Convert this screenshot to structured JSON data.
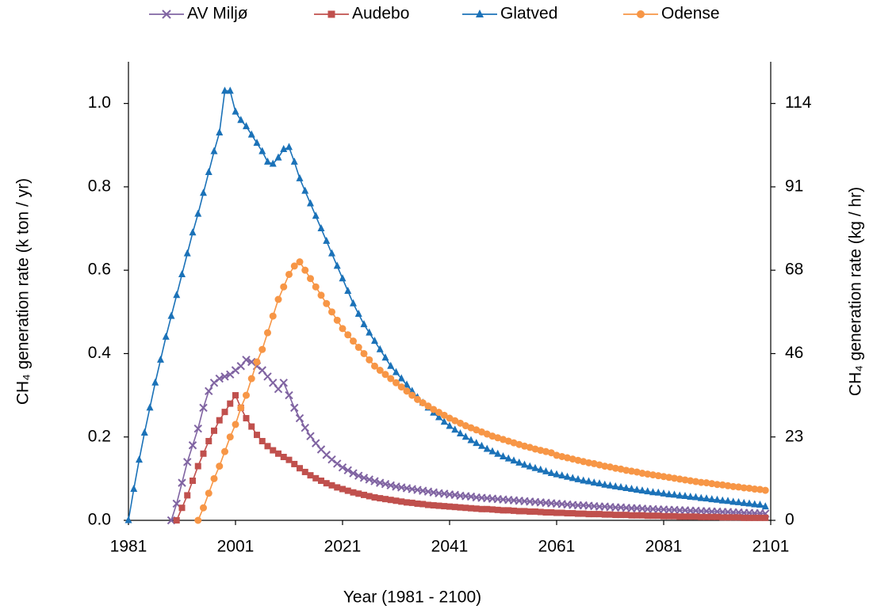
{
  "chart_data": {
    "type": "line",
    "x_label": "Year (1981 - 2100)",
    "y_label": "CH₄ generation rate (k ton / yr)",
    "y2_label": "CH₄ generation rate (kg / hr)",
    "xlim": [
      1981,
      2101
    ],
    "xticks": [
      1981,
      2001,
      2021,
      2041,
      2061,
      2081,
      2101
    ],
    "ylim": [
      0,
      1.1
    ],
    "yticks": [
      {
        "value": 0,
        "label": "0.0"
      },
      0.2,
      0.4,
      0.6,
      0.8,
      {
        "value": 1,
        "label": "1.0"
      }
    ],
    "y2lim": [
      0,
      125.49
    ],
    "y2ticks": [
      0,
      {
        "value": 22.82,
        "label": "23"
      },
      {
        "value": 45.63,
        "label": "46"
      },
      {
        "value": 68.45,
        "label": "68"
      },
      {
        "value": 91.26,
        "label": "91"
      },
      {
        "value": 114.08,
        "label": "114"
      }
    ],
    "legend": "top",
    "grid": false,
    "x": [
      1981,
      1982,
      1983,
      1984,
      1985,
      1986,
      1987,
      1988,
      1989,
      1990,
      1991,
      1992,
      1993,
      1994,
      1995,
      1996,
      1997,
      1998,
      1999,
      2000,
      2001,
      2002,
      2003,
      2004,
      2005,
      2006,
      2007,
      2008,
      2009,
      2010,
      2011,
      2012,
      2013,
      2014,
      2015,
      2016,
      2017,
      2018,
      2019,
      2020,
      2021,
      2022,
      2023,
      2024,
      2025,
      2026,
      2027,
      2028,
      2029,
      2030,
      2031,
      2032,
      2033,
      2034,
      2035,
      2036,
      2037,
      2038,
      2039,
      2040,
      2041,
      2042,
      2043,
      2044,
      2045,
      2046,
      2047,
      2048,
      2049,
      2050,
      2051,
      2052,
      2053,
      2054,
      2055,
      2056,
      2057,
      2058,
      2059,
      2060,
      2061,
      2062,
      2063,
      2064,
      2065,
      2066,
      2067,
      2068,
      2069,
      2070,
      2071,
      2072,
      2073,
      2074,
      2075,
      2076,
      2077,
      2078,
      2079,
      2080,
      2081,
      2082,
      2083,
      2084,
      2085,
      2086,
      2087,
      2088,
      2089,
      2090,
      2091,
      2092,
      2093,
      2094,
      2095,
      2096,
      2097,
      2098,
      2099,
      2100
    ],
    "series": [
      {
        "name": "AV Miljø",
        "color": "#8064a2",
        "marker": "x",
        "values": [
          null,
          null,
          null,
          null,
          null,
          null,
          null,
          null,
          0,
          0.04,
          0.09,
          0.14,
          0.18,
          0.22,
          0.27,
          0.31,
          0.33,
          0.34,
          0.345,
          0.35,
          0.36,
          0.37,
          0.385,
          0.38,
          0.37,
          0.36,
          0.345,
          0.33,
          0.315,
          0.33,
          0.3,
          0.27,
          0.245,
          0.222,
          0.202,
          0.185,
          0.17,
          0.157,
          0.146,
          0.136,
          0.127,
          0.12,
          0.113,
          0.107,
          0.102,
          0.098,
          0.094,
          0.09,
          0.087,
          0.084,
          0.081,
          0.079,
          0.077,
          0.075,
          0.073,
          0.071,
          0.069,
          0.067,
          0.065,
          0.064,
          0.062,
          0.061,
          0.059,
          0.058,
          0.057,
          0.055,
          0.054,
          0.053,
          0.052,
          0.051,
          0.05,
          0.049,
          0.048,
          0.047,
          0.046,
          0.045,
          0.044,
          0.043,
          0.042,
          0.041,
          0.04,
          0.039,
          0.038,
          0.037,
          0.036,
          0.036,
          0.035,
          0.034,
          0.033,
          0.033,
          0.032,
          0.031,
          0.031,
          0.03,
          0.029,
          0.029,
          0.028,
          0.027,
          0.027,
          0.026,
          0.026,
          0.025,
          0.025,
          0.024,
          0.024,
          0.023,
          0.023,
          0.022,
          0.022,
          0.021,
          0.021,
          0.02,
          0.02,
          0.019,
          0.019,
          0.018,
          0.018,
          0.017,
          0.017,
          0.016
        ]
      },
      {
        "name": "Audebo",
        "color": "#c0504d",
        "marker": "square",
        "values": [
          null,
          null,
          null,
          null,
          null,
          null,
          null,
          null,
          null,
          0,
          0.03,
          0.06,
          0.095,
          0.13,
          0.16,
          0.19,
          0.215,
          0.24,
          0.26,
          0.28,
          0.3,
          0.27,
          0.245,
          0.225,
          0.205,
          0.19,
          0.178,
          0.168,
          0.16,
          0.152,
          0.145,
          0.135,
          0.125,
          0.116,
          0.108,
          0.101,
          0.095,
          0.089,
          0.084,
          0.079,
          0.075,
          0.071,
          0.067,
          0.064,
          0.061,
          0.058,
          0.055,
          0.053,
          0.051,
          0.049,
          0.047,
          0.045,
          0.043,
          0.042,
          0.04,
          0.039,
          0.037,
          0.036,
          0.035,
          0.034,
          0.033,
          0.032,
          0.031,
          0.03,
          0.029,
          0.028,
          0.027,
          0.027,
          0.026,
          0.025,
          0.024,
          0.024,
          0.023,
          0.022,
          0.022,
          0.021,
          0.021,
          0.02,
          0.019,
          0.019,
          0.018,
          0.018,
          0.017,
          0.017,
          0.016,
          0.016,
          0.015,
          0.015,
          0.015,
          0.014,
          0.014,
          0.013,
          0.013,
          0.013,
          0.012,
          0.012,
          0.012,
          0.011,
          0.011,
          0.011,
          0.01,
          0.01,
          0.01,
          0.009,
          0.009,
          0.009,
          0.009,
          0.008,
          0.008,
          0.008,
          0.008,
          0.007,
          0.007,
          0.007,
          0.007,
          0.006,
          0.006,
          0.006,
          0.006,
          0.006
        ]
      },
      {
        "name": "Glatved",
        "color": "#1b72b8",
        "marker": "triangle",
        "values": [
          0,
          0.075,
          0.145,
          0.21,
          0.27,
          0.33,
          0.385,
          0.44,
          0.49,
          0.54,
          0.59,
          0.64,
          0.69,
          0.735,
          0.785,
          0.835,
          0.885,
          0.93,
          1.03,
          1.03,
          0.98,
          0.96,
          0.945,
          0.925,
          0.905,
          0.885,
          0.86,
          0.855,
          0.87,
          0.89,
          0.895,
          0.86,
          0.82,
          0.79,
          0.76,
          0.73,
          0.7,
          0.67,
          0.64,
          0.61,
          0.58,
          0.55,
          0.52,
          0.495,
          0.47,
          0.45,
          0.43,
          0.41,
          0.39,
          0.37,
          0.355,
          0.34,
          0.325,
          0.31,
          0.295,
          0.282,
          0.27,
          0.258,
          0.247,
          0.236,
          0.226,
          0.217,
          0.208,
          0.2,
          0.192,
          0.185,
          0.178,
          0.171,
          0.165,
          0.159,
          0.153,
          0.148,
          0.143,
          0.138,
          0.133,
          0.129,
          0.125,
          0.121,
          0.117,
          0.113,
          0.11,
          0.107,
          0.104,
          0.101,
          0.098,
          0.095,
          0.093,
          0.09,
          0.088,
          0.085,
          0.083,
          0.081,
          0.079,
          0.077,
          0.075,
          0.073,
          0.071,
          0.069,
          0.067,
          0.066,
          0.064,
          0.062,
          0.061,
          0.059,
          0.058,
          0.056,
          0.055,
          0.053,
          0.052,
          0.05,
          0.049,
          0.047,
          0.046,
          0.044,
          0.043,
          0.041,
          0.04,
          0.038,
          0.037,
          0.033
        ]
      },
      {
        "name": "Odense",
        "color": "#f79646",
        "marker": "circle",
        "values": [
          null,
          null,
          null,
          null,
          null,
          null,
          null,
          null,
          null,
          null,
          null,
          null,
          null,
          0,
          0.03,
          0.065,
          0.1,
          0.13,
          0.165,
          0.2,
          0.23,
          0.27,
          0.3,
          0.34,
          0.38,
          0.41,
          0.45,
          0.49,
          0.53,
          0.56,
          0.59,
          0.61,
          0.62,
          0.6,
          0.58,
          0.56,
          0.54,
          0.52,
          0.5,
          0.48,
          0.46,
          0.445,
          0.43,
          0.415,
          0.4,
          0.385,
          0.37,
          0.36,
          0.35,
          0.34,
          0.33,
          0.32,
          0.31,
          0.3,
          0.29,
          0.282,
          0.274,
          0.266,
          0.259,
          0.252,
          0.245,
          0.239,
          0.233,
          0.227,
          0.222,
          0.217,
          0.212,
          0.207,
          0.202,
          0.198,
          0.194,
          0.19,
          0.186,
          0.182,
          0.178,
          0.175,
          0.171,
          0.168,
          0.165,
          0.162,
          0.156,
          0.153,
          0.15,
          0.147,
          0.144,
          0.141,
          0.138,
          0.136,
          0.133,
          0.13,
          0.128,
          0.125,
          0.123,
          0.12,
          0.118,
          0.116,
          0.113,
          0.111,
          0.109,
          0.107,
          0.105,
          0.103,
          0.101,
          0.099,
          0.097,
          0.095,
          0.093,
          0.091,
          0.09,
          0.088,
          0.086,
          0.085,
          0.083,
          0.081,
          0.08,
          0.078,
          0.077,
          0.075,
          0.074,
          0.072
        ]
      }
    ]
  }
}
